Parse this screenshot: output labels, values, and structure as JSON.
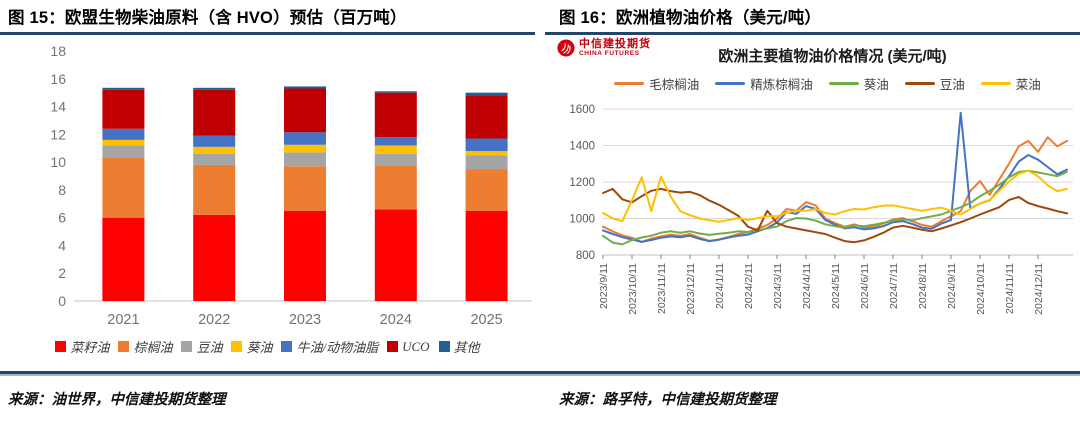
{
  "left_panel": {
    "title": "图 15：欧盟生物柴油原料（含 HVO）预估（百万吨）",
    "source": "来源：油世界，中信建投期货整理"
  },
  "right_panel": {
    "title": "图 16：欧洲植物油价格（美元/吨）",
    "source": "来源：路孚特，中信建投期货整理",
    "logo": {
      "name_cn": "中信建投期货",
      "name_en": "CHINA FUTURES"
    }
  },
  "colors": {
    "rule_navy": "#24466B",
    "rule_light_blue": "#9FB6D4",
    "axis_text_gray": "#737373",
    "grid_gray": "#D9D9D9",
    "logo_red": "#D7000F"
  },
  "chart_data": [
    {
      "type": "bar",
      "stacked": true,
      "title": "欧盟生物柴油原料（含 HVO）预估（百万吨）",
      "categories": [
        "2021",
        "2022",
        "2023",
        "2024",
        "2025"
      ],
      "ylim": [
        0,
        18
      ],
      "yticks": [
        0,
        2,
        4,
        6,
        8,
        10,
        12,
        14,
        16,
        18
      ],
      "grid": false,
      "legend_position": "bottom",
      "series": [
        {
          "id": "rapeseed-oil",
          "name": "菜籽油",
          "color": "#FF0000",
          "values": [
            6.0,
            6.2,
            6.5,
            6.6,
            6.5
          ]
        },
        {
          "id": "palm-oil",
          "name": "棕榈油",
          "color": "#ED7D31",
          "values": [
            4.3,
            3.6,
            3.2,
            3.15,
            3.0
          ]
        },
        {
          "id": "soybean-oil",
          "name": "豆油",
          "color": "#A5A5A5",
          "values": [
            0.9,
            0.8,
            1.0,
            0.85,
            1.0
          ]
        },
        {
          "id": "sunflower-oil",
          "name": "葵油",
          "color": "#FFC000",
          "values": [
            0.4,
            0.5,
            0.55,
            0.6,
            0.3
          ]
        },
        {
          "id": "tallow-animal-fat",
          "name": "牛油/动物油脂",
          "color": "#4472C4",
          "values": [
            0.8,
            0.8,
            0.9,
            0.6,
            0.9
          ]
        },
        {
          "id": "uco",
          "name": "UCO",
          "color": "#C00000",
          "values": [
            2.8,
            3.3,
            3.15,
            3.2,
            3.1
          ]
        },
        {
          "id": "other",
          "name": "其他",
          "color": "#255E91",
          "values": [
            0.15,
            0.15,
            0.15,
            0.1,
            0.2
          ]
        }
      ]
    },
    {
      "type": "line",
      "title": "欧洲主要植物油价格情况 (美元/吨)",
      "ylim": [
        800,
        1600
      ],
      "yticks": [
        800,
        1000,
        1200,
        1400,
        1600
      ],
      "grid": true,
      "legend_position": "top",
      "x_tick_labels": [
        "2023/9/11",
        "2023/10/11",
        "2023/11/11",
        "2023/12/11",
        "2024/1/11",
        "2024/2/11",
        "2024/3/11",
        "2024/4/11",
        "2024/5/11",
        "2024/6/11",
        "2024/7/11",
        "2024/8/11",
        "2024/9/11",
        "2024/10/11",
        "2024/11/11",
        "2024/12/11"
      ],
      "points_per_tick": 3,
      "series": [
        {
          "id": "crude-palm-oil",
          "name": "毛棕榈油",
          "color": "#ED7D31",
          "values": [
            955,
            930,
            908,
            895,
            872,
            890,
            902,
            912,
            905,
            915,
            895,
            878,
            885,
            900,
            915,
            925,
            945,
            965,
            1000,
            1052,
            1042,
            1090,
            1072,
            1000,
            975,
            955,
            968,
            950,
            956,
            972,
            995,
            1002,
            985,
            965,
            955,
            985,
            1012,
            1040,
            1150,
            1205,
            1130,
            1215,
            1300,
            1395,
            1425,
            1365,
            1445,
            1395,
            1425
          ]
        },
        {
          "id": "refined-palm-oil",
          "name": "精炼棕榈油",
          "color": "#4472C4",
          "values": [
            935,
            915,
            898,
            885,
            872,
            882,
            895,
            902,
            897,
            905,
            888,
            876,
            884,
            896,
            906,
            912,
            930,
            948,
            978,
            1035,
            1026,
            1068,
            1052,
            992,
            966,
            946,
            952,
            940,
            946,
            958,
            980,
            986,
            970,
            950,
            944,
            972,
            992,
            1580,
            1055,
            1082,
            1100,
            1162,
            1232,
            1312,
            1348,
            1322,
            1282,
            1242,
            1268
          ]
        },
        {
          "id": "sunflower-oil",
          "name": "葵油",
          "color": "#70AD47",
          "values": [
            905,
            868,
            858,
            882,
            896,
            906,
            922,
            930,
            922,
            930,
            918,
            910,
            916,
            922,
            930,
            926,
            936,
            946,
            956,
            986,
            1002,
            1000,
            988,
            968,
            958,
            950,
            962,
            958,
            966,
            976,
            988,
            996,
            990,
            1002,
            1012,
            1022,
            1042,
            1062,
            1085,
            1122,
            1152,
            1185,
            1225,
            1255,
            1262,
            1252,
            1242,
            1232,
            1255
          ]
        },
        {
          "id": "soybean-oil",
          "name": "豆油",
          "color": "#9E480E",
          "values": [
            1140,
            1162,
            1105,
            1088,
            1122,
            1152,
            1162,
            1150,
            1142,
            1146,
            1128,
            1098,
            1075,
            1045,
            1015,
            955,
            935,
            1042,
            975,
            955,
            945,
            935,
            925,
            915,
            895,
            876,
            870,
            880,
            900,
            922,
            950,
            960,
            950,
            938,
            930,
            945,
            962,
            980,
            1000,
            1022,
            1042,
            1062,
            1102,
            1118,
            1085,
            1068,
            1055,
            1040,
            1028
          ]
        },
        {
          "id": "rapeseed-oil",
          "name": "菜油",
          "color": "#FFC000",
          "values": [
            1030,
            1000,
            985,
            1100,
            1225,
            1040,
            1230,
            1120,
            1040,
            1018,
            1000,
            990,
            982,
            992,
            1002,
            992,
            1002,
            1012,
            1012,
            1032,
            1042,
            1042,
            1052,
            1030,
            1022,
            1040,
            1052,
            1050,
            1062,
            1070,
            1072,
            1062,
            1052,
            1042,
            1052,
            1060,
            1042,
            1022,
            1052,
            1082,
            1102,
            1152,
            1202,
            1245,
            1262,
            1232,
            1182,
            1150,
            1162
          ]
        }
      ]
    }
  ]
}
